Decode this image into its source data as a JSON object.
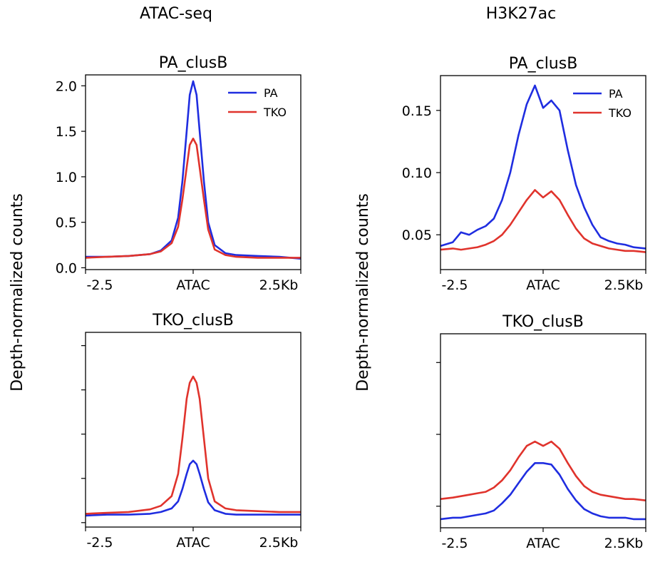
{
  "columns": [
    {
      "title": "ATAC-seq"
    },
    {
      "title": "H3K27ac"
    }
  ],
  "ylabel": "Depth-normalized counts",
  "colors": {
    "PA": "#1f2de0",
    "TKO": "#e0332c"
  },
  "chart_data": [
    {
      "type": "line",
      "column": "ATAC-seq",
      "title": "PA_clusB",
      "x_tick_labels": [
        "-2.5",
        "ATAC",
        "2.5Kb"
      ],
      "x": [
        -2.5,
        -2.0,
        -1.5,
        -1.0,
        -0.75,
        -0.5,
        -0.35,
        -0.25,
        -0.15,
        -0.08,
        0,
        0.08,
        0.15,
        0.25,
        0.35,
        0.5,
        0.75,
        1.0,
        1.5,
        2.0,
        2.5
      ],
      "ylim": [
        -0.02,
        2.12
      ],
      "y_ticks": [
        "0.0",
        "0.5",
        "1.0",
        "1.5",
        "2.0"
      ],
      "show_y_tick_labels": true,
      "legend": {
        "position": "top-right",
        "entries": [
          "PA",
          "TKO"
        ]
      },
      "series": [
        {
          "name": "PA",
          "values": [
            0.12,
            0.12,
            0.13,
            0.15,
            0.19,
            0.3,
            0.55,
            0.95,
            1.5,
            1.9,
            2.05,
            1.9,
            1.5,
            0.95,
            0.5,
            0.25,
            0.16,
            0.14,
            0.13,
            0.12,
            0.1
          ]
        },
        {
          "name": "TKO",
          "values": [
            0.11,
            0.12,
            0.13,
            0.15,
            0.18,
            0.27,
            0.45,
            0.75,
            1.1,
            1.35,
            1.42,
            1.35,
            1.1,
            0.75,
            0.42,
            0.2,
            0.14,
            0.12,
            0.11,
            0.11,
            0.11
          ]
        }
      ]
    },
    {
      "type": "line",
      "column": "ATAC-seq",
      "title": "TKO_clusB",
      "x_tick_labels": [
        "-2.5",
        "ATAC",
        "2.5Kb"
      ],
      "x": [
        -2.5,
        -2.0,
        -1.5,
        -1.0,
        -0.75,
        -0.5,
        -0.35,
        -0.25,
        -0.15,
        -0.08,
        0,
        0.08,
        0.15,
        0.25,
        0.35,
        0.5,
        0.75,
        1.0,
        1.5,
        2.0,
        2.5
      ],
      "ylim": [
        -0.05,
        2.15
      ],
      "y_ticks": [
        0,
        0.5,
        1.0,
        1.5,
        2.0
      ],
      "show_y_tick_labels": false,
      "series": [
        {
          "name": "PA",
          "values": [
            0.08,
            0.09,
            0.09,
            0.1,
            0.12,
            0.16,
            0.24,
            0.38,
            0.55,
            0.66,
            0.7,
            0.66,
            0.55,
            0.38,
            0.23,
            0.14,
            0.1,
            0.09,
            0.09,
            0.09,
            0.09
          ]
        },
        {
          "name": "TKO",
          "values": [
            0.1,
            0.11,
            0.12,
            0.15,
            0.19,
            0.3,
            0.55,
            0.95,
            1.4,
            1.58,
            1.65,
            1.58,
            1.4,
            0.95,
            0.5,
            0.24,
            0.16,
            0.14,
            0.13,
            0.12,
            0.12
          ]
        }
      ]
    },
    {
      "type": "line",
      "column": "H3K27ac",
      "title": "PA_clusB",
      "x_tick_labels": [
        "-2.5",
        "ATAC",
        "2.5Kb"
      ],
      "x": [
        -2.5,
        -2.2,
        -2.0,
        -1.8,
        -1.6,
        -1.4,
        -1.2,
        -1.0,
        -0.8,
        -0.6,
        -0.4,
        -0.2,
        0,
        0.2,
        0.4,
        0.6,
        0.8,
        1.0,
        1.2,
        1.4,
        1.6,
        1.8,
        2.0,
        2.2,
        2.5
      ],
      "ylim": [
        0.022,
        0.178
      ],
      "y_ticks": [
        "0.05",
        "0.10",
        "0.15"
      ],
      "show_y_tick_labels": true,
      "legend": {
        "position": "top-right",
        "entries": [
          "PA",
          "TKO"
        ]
      },
      "series": [
        {
          "name": "PA",
          "values": [
            0.041,
            0.044,
            0.052,
            0.05,
            0.054,
            0.057,
            0.063,
            0.078,
            0.1,
            0.13,
            0.155,
            0.17,
            0.152,
            0.158,
            0.15,
            0.118,
            0.09,
            0.072,
            0.058,
            0.048,
            0.045,
            0.043,
            0.042,
            0.04,
            0.039
          ]
        },
        {
          "name": "TKO",
          "values": [
            0.038,
            0.039,
            0.038,
            0.039,
            0.04,
            0.042,
            0.045,
            0.05,
            0.058,
            0.068,
            0.078,
            0.086,
            0.08,
            0.085,
            0.078,
            0.066,
            0.055,
            0.047,
            0.043,
            0.041,
            0.039,
            0.038,
            0.037,
            0.037,
            0.036
          ]
        }
      ]
    },
    {
      "type": "line",
      "column": "H3K27ac",
      "title": "TKO_clusB",
      "x_tick_labels": [
        "-2.5",
        "ATAC",
        "2.5Kb"
      ],
      "x": [
        -2.5,
        -2.2,
        -2.0,
        -1.8,
        -1.6,
        -1.4,
        -1.2,
        -1.0,
        -0.8,
        -0.6,
        -0.4,
        -0.2,
        0,
        0.2,
        0.4,
        0.6,
        0.8,
        1.0,
        1.2,
        1.4,
        1.6,
        1.8,
        2.0,
        2.2,
        2.5
      ],
      "ylim": [
        0.035,
        0.17
      ],
      "y_ticks": [
        0.05,
        0.1,
        0.15
      ],
      "show_y_tick_labels": false,
      "series": [
        {
          "name": "PA",
          "values": [
            0.041,
            0.042,
            0.042,
            0.043,
            0.044,
            0.045,
            0.047,
            0.052,
            0.058,
            0.066,
            0.074,
            0.08,
            0.08,
            0.079,
            0.072,
            0.062,
            0.054,
            0.048,
            0.045,
            0.043,
            0.042,
            0.042,
            0.042,
            0.041,
            0.041
          ]
        },
        {
          "name": "TKO",
          "values": [
            0.055,
            0.056,
            0.057,
            0.058,
            0.059,
            0.06,
            0.063,
            0.068,
            0.075,
            0.084,
            0.092,
            0.095,
            0.092,
            0.095,
            0.09,
            0.08,
            0.071,
            0.064,
            0.06,
            0.058,
            0.057,
            0.056,
            0.055,
            0.055,
            0.054
          ]
        }
      ]
    }
  ]
}
